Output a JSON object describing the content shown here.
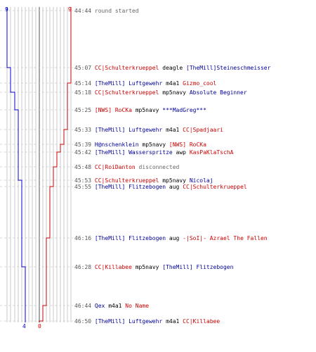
{
  "colors": {
    "blue_team": "#0000cc",
    "red_team": "#cc0000",
    "grid": "#bbbbbb",
    "dash": "#cccccc",
    "text_gray": "#666666"
  },
  "scores": {
    "blue_start": "9",
    "red_start": "9",
    "blue_end": "4",
    "red_end": "0"
  },
  "events": [
    {
      "time": "44:44",
      "a": "round started",
      "a_team": "gray",
      "weapon": "",
      "b": "",
      "b_team": ""
    },
    {
      "time": "45:07",
      "a": "CC|Schulterkrueppel",
      "a_team": "red",
      "weapon": "deagle",
      "b": "[TheMill]Steineschmeisser",
      "b_team": "blue"
    },
    {
      "time": "45:14",
      "a": "[TheMill] Luftgewehr",
      "a_team": "blue",
      "weapon": "m4a1",
      "b": "Gizmo_cool",
      "b_team": "red"
    },
    {
      "time": "45:18",
      "a": "CC|Schulterkrueppel",
      "a_team": "red",
      "weapon": "mp5navy",
      "b": "Absolute Beginner",
      "b_team": "blue"
    },
    {
      "time": "45:25",
      "a": "[NWS] RoCKa",
      "a_team": "red",
      "weapon": "mp5navy",
      "b": "***MadGreg***",
      "b_team": "blue"
    },
    {
      "time": "45:33",
      "a": "[TheMill] Luftgewehr",
      "a_team": "blue",
      "weapon": "m4a1",
      "b": "CC|Spadjaari",
      "b_team": "red"
    },
    {
      "time": "45:39",
      "a": "H@nschenklein",
      "a_team": "blue",
      "weapon": "mp5navy",
      "b": "[NWS] RoCKa",
      "b_team": "red"
    },
    {
      "time": "45:42",
      "a": "[TheMill] Wasserspritze",
      "a_team": "blue",
      "weapon": "awp",
      "b": "KasPaKlaTschA",
      "b_team": "red"
    },
    {
      "time": "45:48",
      "a": "CC|RoiDanton",
      "a_team": "red",
      "weapon": "disconnected",
      "b": "",
      "b_team": ""
    },
    {
      "time": "45:53",
      "a": "CC|Schulterkrueppel",
      "a_team": "red",
      "weapon": "mp5navy",
      "b": "Nicolaj",
      "b_team": "blue"
    },
    {
      "time": "45:55",
      "a": "[TheMill] Flitzebogen",
      "a_team": "blue",
      "weapon": "aug",
      "b": "CC|Schulterkrueppel",
      "b_team": "red"
    },
    {
      "time": "46:16",
      "a": "[TheMill] Flitzebogen",
      "a_team": "blue",
      "weapon": "aug",
      "b": "-|SoI|- Azrael The Fallen",
      "b_team": "red"
    },
    {
      "time": "46:28",
      "a": "CC|Killabee",
      "a_team": "red",
      "weapon": "mp5navy",
      "b": "[TheMill] Flitzebogen",
      "b_team": "blue"
    },
    {
      "time": "46:44",
      "a": "Qex",
      "a_team": "blue",
      "weapon": "m4a1",
      "b": "No Name",
      "b_team": "red"
    },
    {
      "time": "46:50",
      "a": "[TheMill] Luftgewehr",
      "a_team": "blue",
      "weapon": "m4a1",
      "b": "CC|Killabee",
      "b_team": "red"
    }
  ]
}
